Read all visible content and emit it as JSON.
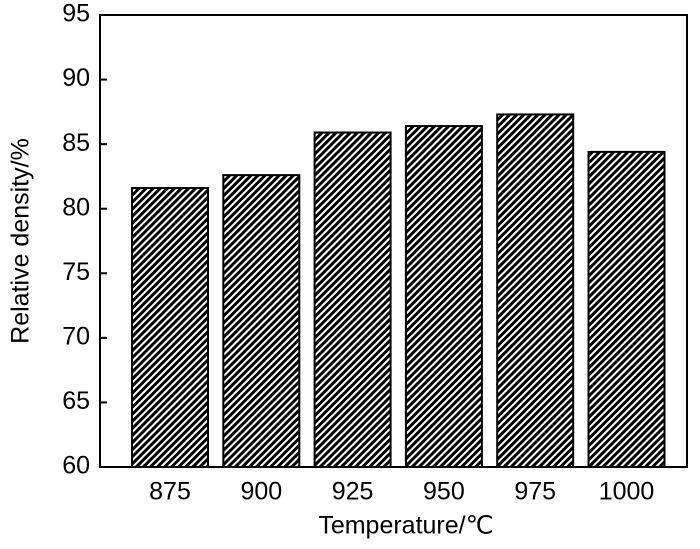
{
  "chart_data": {
    "type": "bar",
    "x_label": "Temperature/℃",
    "y_label": "Relative density/%",
    "categories": [
      "875",
      "900",
      "925",
      "950",
      "975",
      "1000"
    ],
    "values": [
      81.6,
      82.6,
      85.9,
      86.4,
      87.3,
      84.4
    ],
    "color": "#000000",
    "ylim": [
      60,
      95
    ],
    "yticks": [
      60,
      65,
      70,
      75,
      80,
      85,
      90,
      95
    ],
    "grid": false
  }
}
